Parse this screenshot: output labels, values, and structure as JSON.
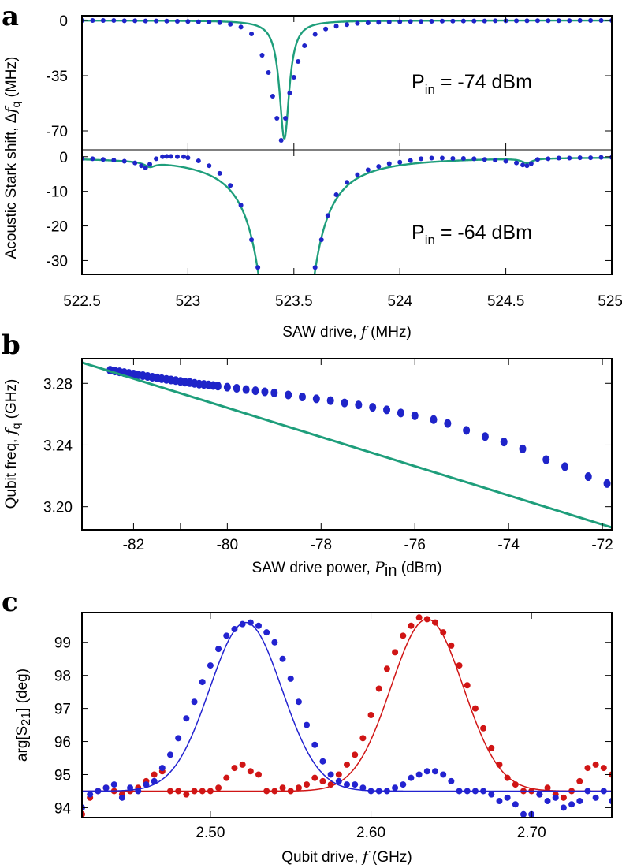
{
  "panels": {
    "a": "a",
    "b": "b",
    "c": "c"
  },
  "colors": {
    "data_blue": "#1f24c9",
    "fit_green": "#1e9e7b",
    "red": "#d01515",
    "blue_fit": "#2323d0"
  },
  "chart_data": [
    {
      "id": "a",
      "type": "scatter",
      "xlabel": "SAW drive, f (MHz)",
      "xlabel_parts": [
        "SAW drive, ",
        "f",
        " (MHz)"
      ],
      "ylabel": "Acoustic Stark shift, Δf q (MHz)",
      "ylabel_parts": [
        "Acoustic Stark shift, Δ",
        "f",
        "q",
        " (MHz)"
      ],
      "xlim": [
        522.5,
        525
      ],
      "xticks": [
        522.5,
        523,
        523.5,
        524,
        524.5,
        525
      ],
      "xtick_labels": [
        "522.5",
        "523",
        "523.5",
        "524",
        "524.5",
        "525"
      ],
      "subplots": [
        {
          "annotation": {
            "prefix": "P",
            "sub": "in",
            "text": " = -74 dBm"
          },
          "ylim": [
            -82,
            3
          ],
          "yticks": [
            0,
            -35,
            -70
          ],
          "ytick_labels": [
            "0",
            "-35",
            "-70"
          ],
          "data": {
            "x": [
              522.5,
              522.55,
              522.6,
              522.65,
              522.7,
              522.75,
              522.8,
              522.85,
              522.9,
              522.95,
              523.0,
              523.05,
              523.1,
              523.15,
              523.2,
              523.25,
              523.3,
              523.35,
              523.38,
              523.4,
              523.42,
              523.44,
              523.46,
              523.48,
              523.5,
              523.52,
              523.55,
              523.6,
              523.65,
              523.7,
              523.75,
              523.8,
              523.85,
              523.9,
              523.95,
              524.0,
              524.05,
              524.1,
              524.15,
              524.2,
              524.25,
              524.3,
              524.35,
              524.4,
              524.45,
              524.5,
              524.55,
              524.6,
              524.65,
              524.7,
              524.75,
              524.8,
              524.85,
              524.9,
              524.95,
              525.0
            ],
            "y": [
              0,
              0,
              0,
              0,
              -0.2,
              -0.2,
              -0.3,
              -0.3,
              -0.4,
              -0.5,
              -0.6,
              -0.8,
              -1.0,
              -1.4,
              -2.4,
              -4.2,
              -8.5,
              -22,
              -33,
              -48,
              -62,
              -76,
              -62,
              -46,
              -36,
              -26,
              -16,
              -8.8,
              -5.4,
              -3.6,
              -2.6,
              -1.8,
              -1.5,
              -1.2,
              -1.0,
              -0.8,
              -0.7,
              -0.6,
              -0.5,
              -0.4,
              -0.4,
              -0.3,
              -0.3,
              -0.3,
              -0.2,
              -0.2,
              -0.2,
              -0.2,
              -0.1,
              -0.1,
              -0.1,
              -0.1,
              0,
              0,
              0,
              0
            ]
          },
          "fit": {
            "x0": 523.455,
            "depth": 75,
            "gamma": 0.028
          }
        },
        {
          "annotation": {
            "prefix": "P",
            "sub": "in",
            "text": " = -64 dBm"
          },
          "ylim": [
            -34,
            2
          ],
          "yticks": [
            0,
            -10,
            -20,
            -30
          ],
          "ytick_labels": [
            "0",
            "-10",
            "-20",
            "-30"
          ],
          "data": {
            "x": [
              522.5,
              522.55,
              522.6,
              522.65,
              522.7,
              522.75,
              522.78,
              522.8,
              522.82,
              522.85,
              522.88,
              522.9,
              522.92,
              522.95,
              522.98,
              523.0,
              523.05,
              523.1,
              523.15,
              523.2,
              523.25,
              523.3,
              523.33,
              523.6,
              523.63,
              523.66,
              523.7,
              523.75,
              523.8,
              523.85,
              523.9,
              523.95,
              524.0,
              524.05,
              524.1,
              524.15,
              524.2,
              524.25,
              524.3,
              524.35,
              524.4,
              524.45,
              524.5,
              524.55,
              524.58,
              524.6,
              524.62,
              524.65,
              524.7,
              524.75,
              524.8,
              524.85,
              524.9,
              524.95,
              525.0
            ],
            "y": [
              -0.5,
              -0.6,
              -0.8,
              -1.0,
              -1.3,
              -1.8,
              -2.6,
              -3.2,
              -2.2,
              -0.6,
              0,
              0.1,
              0.1,
              0,
              0,
              -0.3,
              -1.2,
              -2.6,
              -4.8,
              -8.3,
              -14,
              -24,
              -32,
              -32,
              -24,
              -17,
              -11,
              -7.4,
              -5.2,
              -3.8,
              -2.8,
              -2.0,
              -1.6,
              -1.1,
              -0.6,
              -0.4,
              -0.4,
              -0.5,
              -0.5,
              -0.6,
              -0.8,
              -1.0,
              -1.3,
              -1.8,
              -2.4,
              -2.6,
              -2.0,
              -0.8,
              -0.6,
              -0.4,
              -0.4,
              -0.3,
              -0.3,
              -0.2,
              -0.2
            ]
          },
          "fit": {
            "x0": 523.465,
            "depth": 200,
            "gamma": 0.06,
            "side_x0": [
              522.82,
              524.6
            ],
            "side_depth": 1.3,
            "side_gamma": 0.03
          }
        }
      ]
    },
    {
      "id": "b",
      "type": "scatter",
      "xlabel": "SAW drive power, P in (dBm)",
      "xlabel_parts": [
        "SAW drive power, ",
        "P",
        "in",
        " (dBm)"
      ],
      "ylabel": "Qubit freq, f q (GHz)",
      "ylabel_parts": [
        "Qubit freq, ",
        "f",
        "q",
        " (GHz)"
      ],
      "xlim": [
        -83.1,
        -71.8
      ],
      "ylim": [
        3.185,
        3.296
      ],
      "xticks": [
        -82,
        -80,
        -78,
        -76,
        -74,
        -72
      ],
      "xtick_labels": [
        "-82",
        "-80",
        "-78",
        "-76",
        "-74",
        "-72"
      ],
      "extra_xtick": -81,
      "yticks": [
        3.28,
        3.24,
        3.2
      ],
      "ytick_labels": [
        "3.28",
        "3.24",
        "3.20"
      ],
      "data": {
        "x": [
          -82.5,
          -82.4,
          -82.3,
          -82.2,
          -82.1,
          -82.0,
          -81.9,
          -81.8,
          -81.7,
          -81.6,
          -81.5,
          -81.4,
          -81.3,
          -81.2,
          -81.1,
          -81.0,
          -80.9,
          -80.8,
          -80.7,
          -80.6,
          -80.5,
          -80.4,
          -80.3,
          -80.2,
          -80.0,
          -79.8,
          -79.6,
          -79.4,
          -79.2,
          -79.0,
          -78.7,
          -78.4,
          -78.1,
          -77.8,
          -77.5,
          -77.2,
          -76.9,
          -76.6,
          -76.3,
          -76.0,
          -75.6,
          -75.3,
          -74.9,
          -74.5,
          -74.1,
          -73.7,
          -73.2,
          -72.8,
          -72.3,
          -71.9
        ],
        "y": [
          3.2885,
          3.288,
          3.2875,
          3.287,
          3.2865,
          3.286,
          3.2855,
          3.285,
          3.2845,
          3.284,
          3.2835,
          3.283,
          3.2826,
          3.2822,
          3.2818,
          3.2813,
          3.2808,
          3.2805,
          3.28,
          3.2795,
          3.2793,
          3.279,
          3.2786,
          3.2782,
          3.2775,
          3.2768,
          3.276,
          3.2752,
          3.2745,
          3.2738,
          3.2725,
          3.2712,
          3.27,
          3.2688,
          3.2673,
          3.266,
          3.2645,
          3.2628,
          3.2608,
          3.259,
          3.2565,
          3.254,
          3.2495,
          3.2455,
          3.242,
          3.2375,
          3.2305,
          3.226,
          3.2195,
          3.215
        ]
      },
      "fit": {
        "x": [
          -83.1,
          -71.8
        ],
        "y": [
          3.2935,
          3.1865
        ]
      }
    },
    {
      "id": "c",
      "type": "scatter",
      "xlabel": "Qubit drive, f (GHz)",
      "xlabel_parts": [
        "Qubit drive, ",
        "f",
        " (GHz)"
      ],
      "ylabel": "arg[S21] (deg)",
      "ylabel_parts": [
        "arg[S",
        "21",
        "] (deg)"
      ],
      "xlim": [
        2.42,
        2.75
      ],
      "ylim": [
        93.7,
        99.9
      ],
      "xticks": [
        2.5,
        2.6,
        2.7
      ],
      "xtick_labels": [
        "2.50",
        "2.60",
        "2.70"
      ],
      "yticks": [
        94,
        95,
        96,
        97,
        98,
        99
      ],
      "ytick_labels": [
        "94",
        "95",
        "96",
        "97",
        "98",
        "99"
      ],
      "series": [
        {
          "color": "red",
          "x": [
            2.42,
            2.425,
            2.43,
            2.435,
            2.44,
            2.445,
            2.45,
            2.455,
            2.46,
            2.465,
            2.47,
            2.475,
            2.48,
            2.485,
            2.49,
            2.495,
            2.5,
            2.505,
            2.51,
            2.515,
            2.52,
            2.525,
            2.53,
            2.535,
            2.54,
            2.545,
            2.55,
            2.555,
            2.56,
            2.565,
            2.57,
            2.575,
            2.58,
            2.585,
            2.59,
            2.595,
            2.6,
            2.605,
            2.61,
            2.615,
            2.62,
            2.625,
            2.63,
            2.635,
            2.64,
            2.645,
            2.65,
            2.655,
            2.66,
            2.665,
            2.67,
            2.675,
            2.68,
            2.685,
            2.69,
            2.695,
            2.7,
            2.705,
            2.71,
            2.715,
            2.72,
            2.725,
            2.73,
            2.735,
            2.74,
            2.745,
            2.75
          ],
          "y": [
            93.8,
            94.3,
            94.5,
            94.6,
            94.5,
            94.4,
            94.5,
            94.6,
            94.8,
            95.0,
            95.1,
            94.5,
            94.5,
            94.4,
            94.5,
            94.5,
            94.5,
            94.6,
            94.9,
            95.2,
            95.3,
            95.1,
            95.0,
            94.5,
            94.5,
            94.6,
            94.5,
            94.6,
            94.7,
            94.9,
            94.8,
            94.7,
            95.0,
            95.3,
            95.6,
            96.1,
            96.8,
            97.6,
            98.2,
            98.7,
            99.2,
            99.5,
            99.75,
            99.7,
            99.6,
            99.3,
            98.9,
            98.3,
            97.7,
            97.0,
            96.4,
            95.8,
            95.3,
            94.9,
            94.7,
            94.5,
            94.5,
            94.4,
            94.6,
            94.4,
            94.3,
            94.5,
            94.8,
            95.2,
            95.3,
            95.2,
            95.0
          ],
          "fit": {
            "x0": 2.635,
            "amp": 5.2,
            "sigma": 0.0225,
            "base": 94.5
          }
        },
        {
          "color": "blue",
          "x": [
            2.42,
            2.425,
            2.43,
            2.435,
            2.44,
            2.445,
            2.45,
            2.455,
            2.46,
            2.465,
            2.47,
            2.475,
            2.48,
            2.485,
            2.49,
            2.495,
            2.5,
            2.505,
            2.51,
            2.515,
            2.52,
            2.525,
            2.53,
            2.535,
            2.54,
            2.545,
            2.55,
            2.555,
            2.56,
            2.565,
            2.57,
            2.575,
            2.58,
            2.585,
            2.59,
            2.595,
            2.6,
            2.605,
            2.61,
            2.615,
            2.62,
            2.625,
            2.63,
            2.635,
            2.64,
            2.645,
            2.65,
            2.655,
            2.66,
            2.665,
            2.67,
            2.675,
            2.68,
            2.685,
            2.69,
            2.695,
            2.7,
            2.705,
            2.71,
            2.715,
            2.72,
            2.725,
            2.73,
            2.735,
            2.74,
            2.745,
            2.75
          ],
          "y": [
            94.0,
            94.4,
            94.5,
            94.6,
            94.7,
            94.3,
            94.6,
            94.5,
            94.7,
            94.8,
            95.2,
            95.6,
            96.1,
            96.7,
            97.2,
            97.8,
            98.3,
            98.8,
            99.2,
            99.4,
            99.55,
            99.6,
            99.5,
            99.3,
            99.0,
            98.5,
            97.9,
            97.2,
            96.5,
            95.9,
            95.4,
            95.0,
            94.8,
            94.7,
            94.7,
            94.6,
            94.5,
            94.5,
            94.5,
            94.6,
            94.7,
            94.9,
            95.0,
            95.1,
            95.1,
            95.0,
            94.8,
            94.5,
            94.5,
            94.5,
            94.5,
            94.4,
            94.2,
            94.3,
            94.1,
            93.8,
            93.8,
            94.4,
            94.2,
            94.3,
            94.0,
            94.1,
            94.2,
            94.5,
            94.3,
            94.5,
            94.2
          ],
          "fit": {
            "x0": 2.522,
            "amp": 5.1,
            "sigma": 0.0225,
            "base": 94.5
          }
        }
      ]
    }
  ]
}
